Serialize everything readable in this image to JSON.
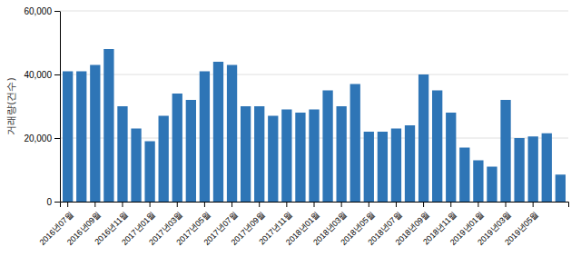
{
  "chart_data": {
    "type": "bar",
    "ylabel": "거래량(건수)",
    "categories": [
      "2016년07월",
      null,
      "2016년09월",
      null,
      "2016년11월",
      null,
      "2017년01월",
      null,
      "2017년03월",
      null,
      "2017년05월",
      null,
      "2017년07월",
      null,
      "2017년09월",
      null,
      "2017년11월",
      null,
      "2018년01월",
      null,
      "2018년03월",
      null,
      "2018년05월",
      null,
      "2018년07월",
      null,
      "2018년09월",
      null,
      "2018년11월",
      null,
      "2019년01월",
      null,
      "2019년03월",
      null,
      "2019년05월",
      null,
      null
    ],
    "values": [
      41000,
      41000,
      43000,
      48000,
      30000,
      23000,
      19000,
      27000,
      34000,
      32000,
      41000,
      44000,
      43000,
      30000,
      30000,
      27000,
      29000,
      28000,
      29000,
      35000,
      30000,
      37000,
      22000,
      22000,
      23000,
      24000,
      40000,
      35000,
      28000,
      17000,
      13000,
      11000,
      32000,
      20000,
      20500,
      21500,
      8500
    ],
    "color": "#2E75B6",
    "ylim": [
      0,
      60000
    ],
    "yticks": [
      0,
      {
        "value": 20000,
        "label": "20,000"
      },
      {
        "value": 40000,
        "label": "40,000"
      },
      {
        "value": 60000,
        "label": "60,000"
      }
    ],
    "grid": true
  }
}
